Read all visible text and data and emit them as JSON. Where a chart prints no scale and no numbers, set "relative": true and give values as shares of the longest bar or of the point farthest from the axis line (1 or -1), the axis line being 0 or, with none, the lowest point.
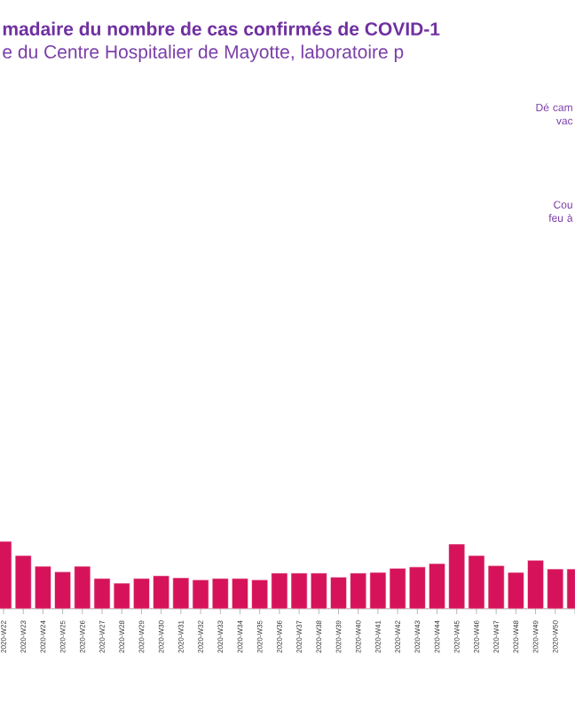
{
  "chart_data": {
    "type": "bar",
    "title": "madaire du nombre de cas confirmés de COVID-1",
    "subtitle": "e du Centre Hospitalier de Mayotte, laboratoire p",
    "annotations": [
      "Dé cam vac",
      "Cou feu à"
    ],
    "categories": [
      "2020-W22",
      "2020-W23",
      "2020-W24",
      "2020-W25",
      "2020-W26",
      "2020-W27",
      "2020-W28",
      "2020-W29",
      "2020-W30",
      "2020-W31",
      "2020-W32",
      "2020-W33",
      "2020-W34",
      "2020-W35",
      "2020-W36",
      "2020-W37",
      "2020-W38",
      "2020-W39",
      "2020-W40",
      "2020-W41",
      "2020-W42",
      "2020-W43",
      "2020-W44",
      "2020-W45",
      "2020-W46",
      "2020-W47",
      "2020-W48",
      "2020-W49",
      "2020-W50",
      null
    ],
    "values": [
      1,
      0.79,
      0.63,
      0.55,
      0.63,
      0.45,
      0.38,
      0.45,
      0.49,
      0.46,
      0.43,
      0.45,
      0.45,
      0.43,
      0.53,
      0.53,
      0.53,
      0.47,
      0.53,
      0.54,
      0.6,
      0.62,
      0.67,
      0.96,
      0.79,
      0.64,
      0.54,
      0.72,
      0.59,
      0.59
    ],
    "color": "#d6135a",
    "relative": true
  }
}
